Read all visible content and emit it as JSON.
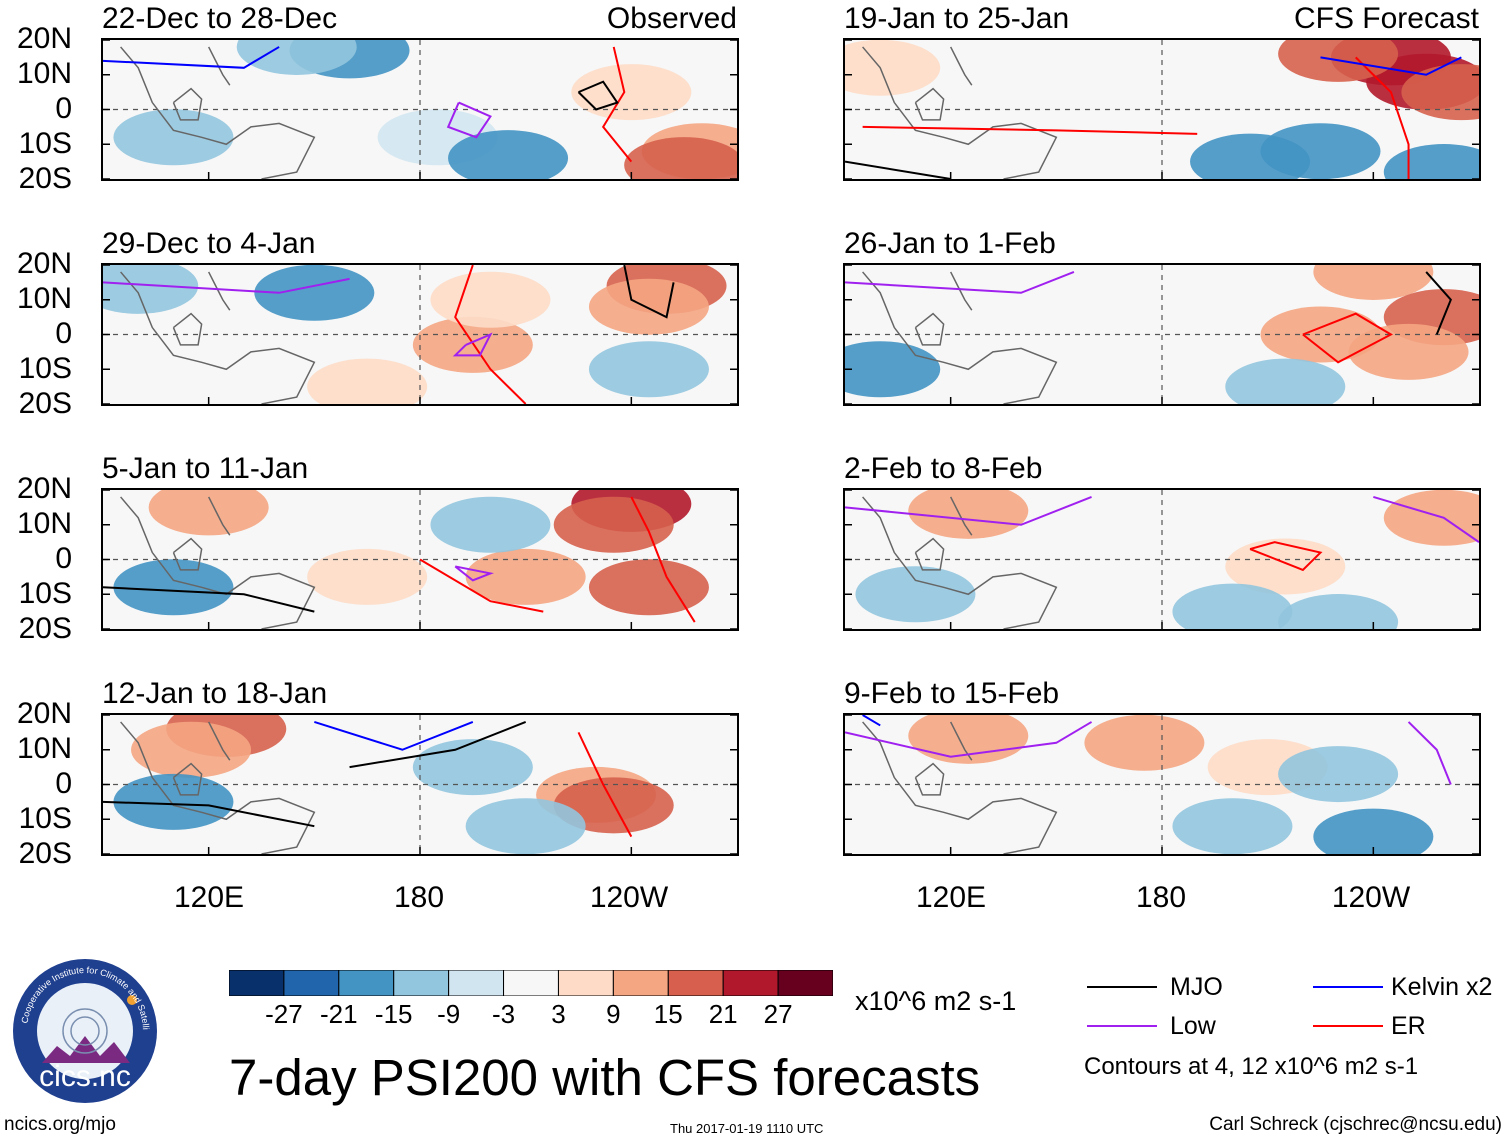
{
  "chart_data": {
    "type": "heatmap",
    "title": "7-day PSI200 with CFS forecasts",
    "variable": "PSI200 anomaly",
    "units": "x10^6 m2 s-1",
    "columns": [
      {
        "label": "Observed",
        "panels": [
          "22-Dec to 28-Dec",
          "29-Dec to 4-Jan",
          "5-Jan to 11-Jan",
          "12-Jan to 18-Jan"
        ]
      },
      {
        "label": "CFS Forecast",
        "panels": [
          "19-Jan to 25-Jan",
          "26-Jan to 1-Feb",
          "2-Feb to 8-Feb",
          "9-Feb to 15-Feb"
        ]
      }
    ],
    "y_ticks": [
      "20N",
      "10N",
      "0",
      "10S",
      "20S"
    ],
    "ylim": [
      -20,
      20
    ],
    "x_ticks": [
      "120E",
      "180",
      "120W"
    ],
    "xlim": [
      90,
      270
    ],
    "colorbar": {
      "levels": [
        "-27",
        "-21",
        "-15",
        "-9",
        "-3",
        "3",
        "9",
        "15",
        "21",
        "27"
      ],
      "colors": [
        "#08306b",
        "#2166ac",
        "#4393c3",
        "#92c5de",
        "#d1e5f0",
        "#f7f7f7",
        "#fddbc7",
        "#f4a582",
        "#d6604d",
        "#b2182b",
        "#67001f"
      ],
      "unit_label": "x10^6 m2 s-1"
    },
    "legend": [
      {
        "name": "MJO",
        "color": "#000000"
      },
      {
        "name": "Kelvin x2",
        "color": "#0000ff"
      },
      {
        "name": "Low",
        "color": "#a020f0"
      },
      {
        "name": "ER",
        "color": "#ff0000"
      }
    ],
    "contour_note": "Contours at 4, 12 x10^6 m2 s-1"
  },
  "logo": {
    "text": "cics.nc",
    "ring_text": "Cooperative Institute for Climate and Satellites"
  },
  "footer": {
    "url": "ncics.org/mjo",
    "timestamp": "Thu 2017-01-19 1110 UTC",
    "author": "Carl Schreck (cjschrec@ncsu.edu)"
  }
}
